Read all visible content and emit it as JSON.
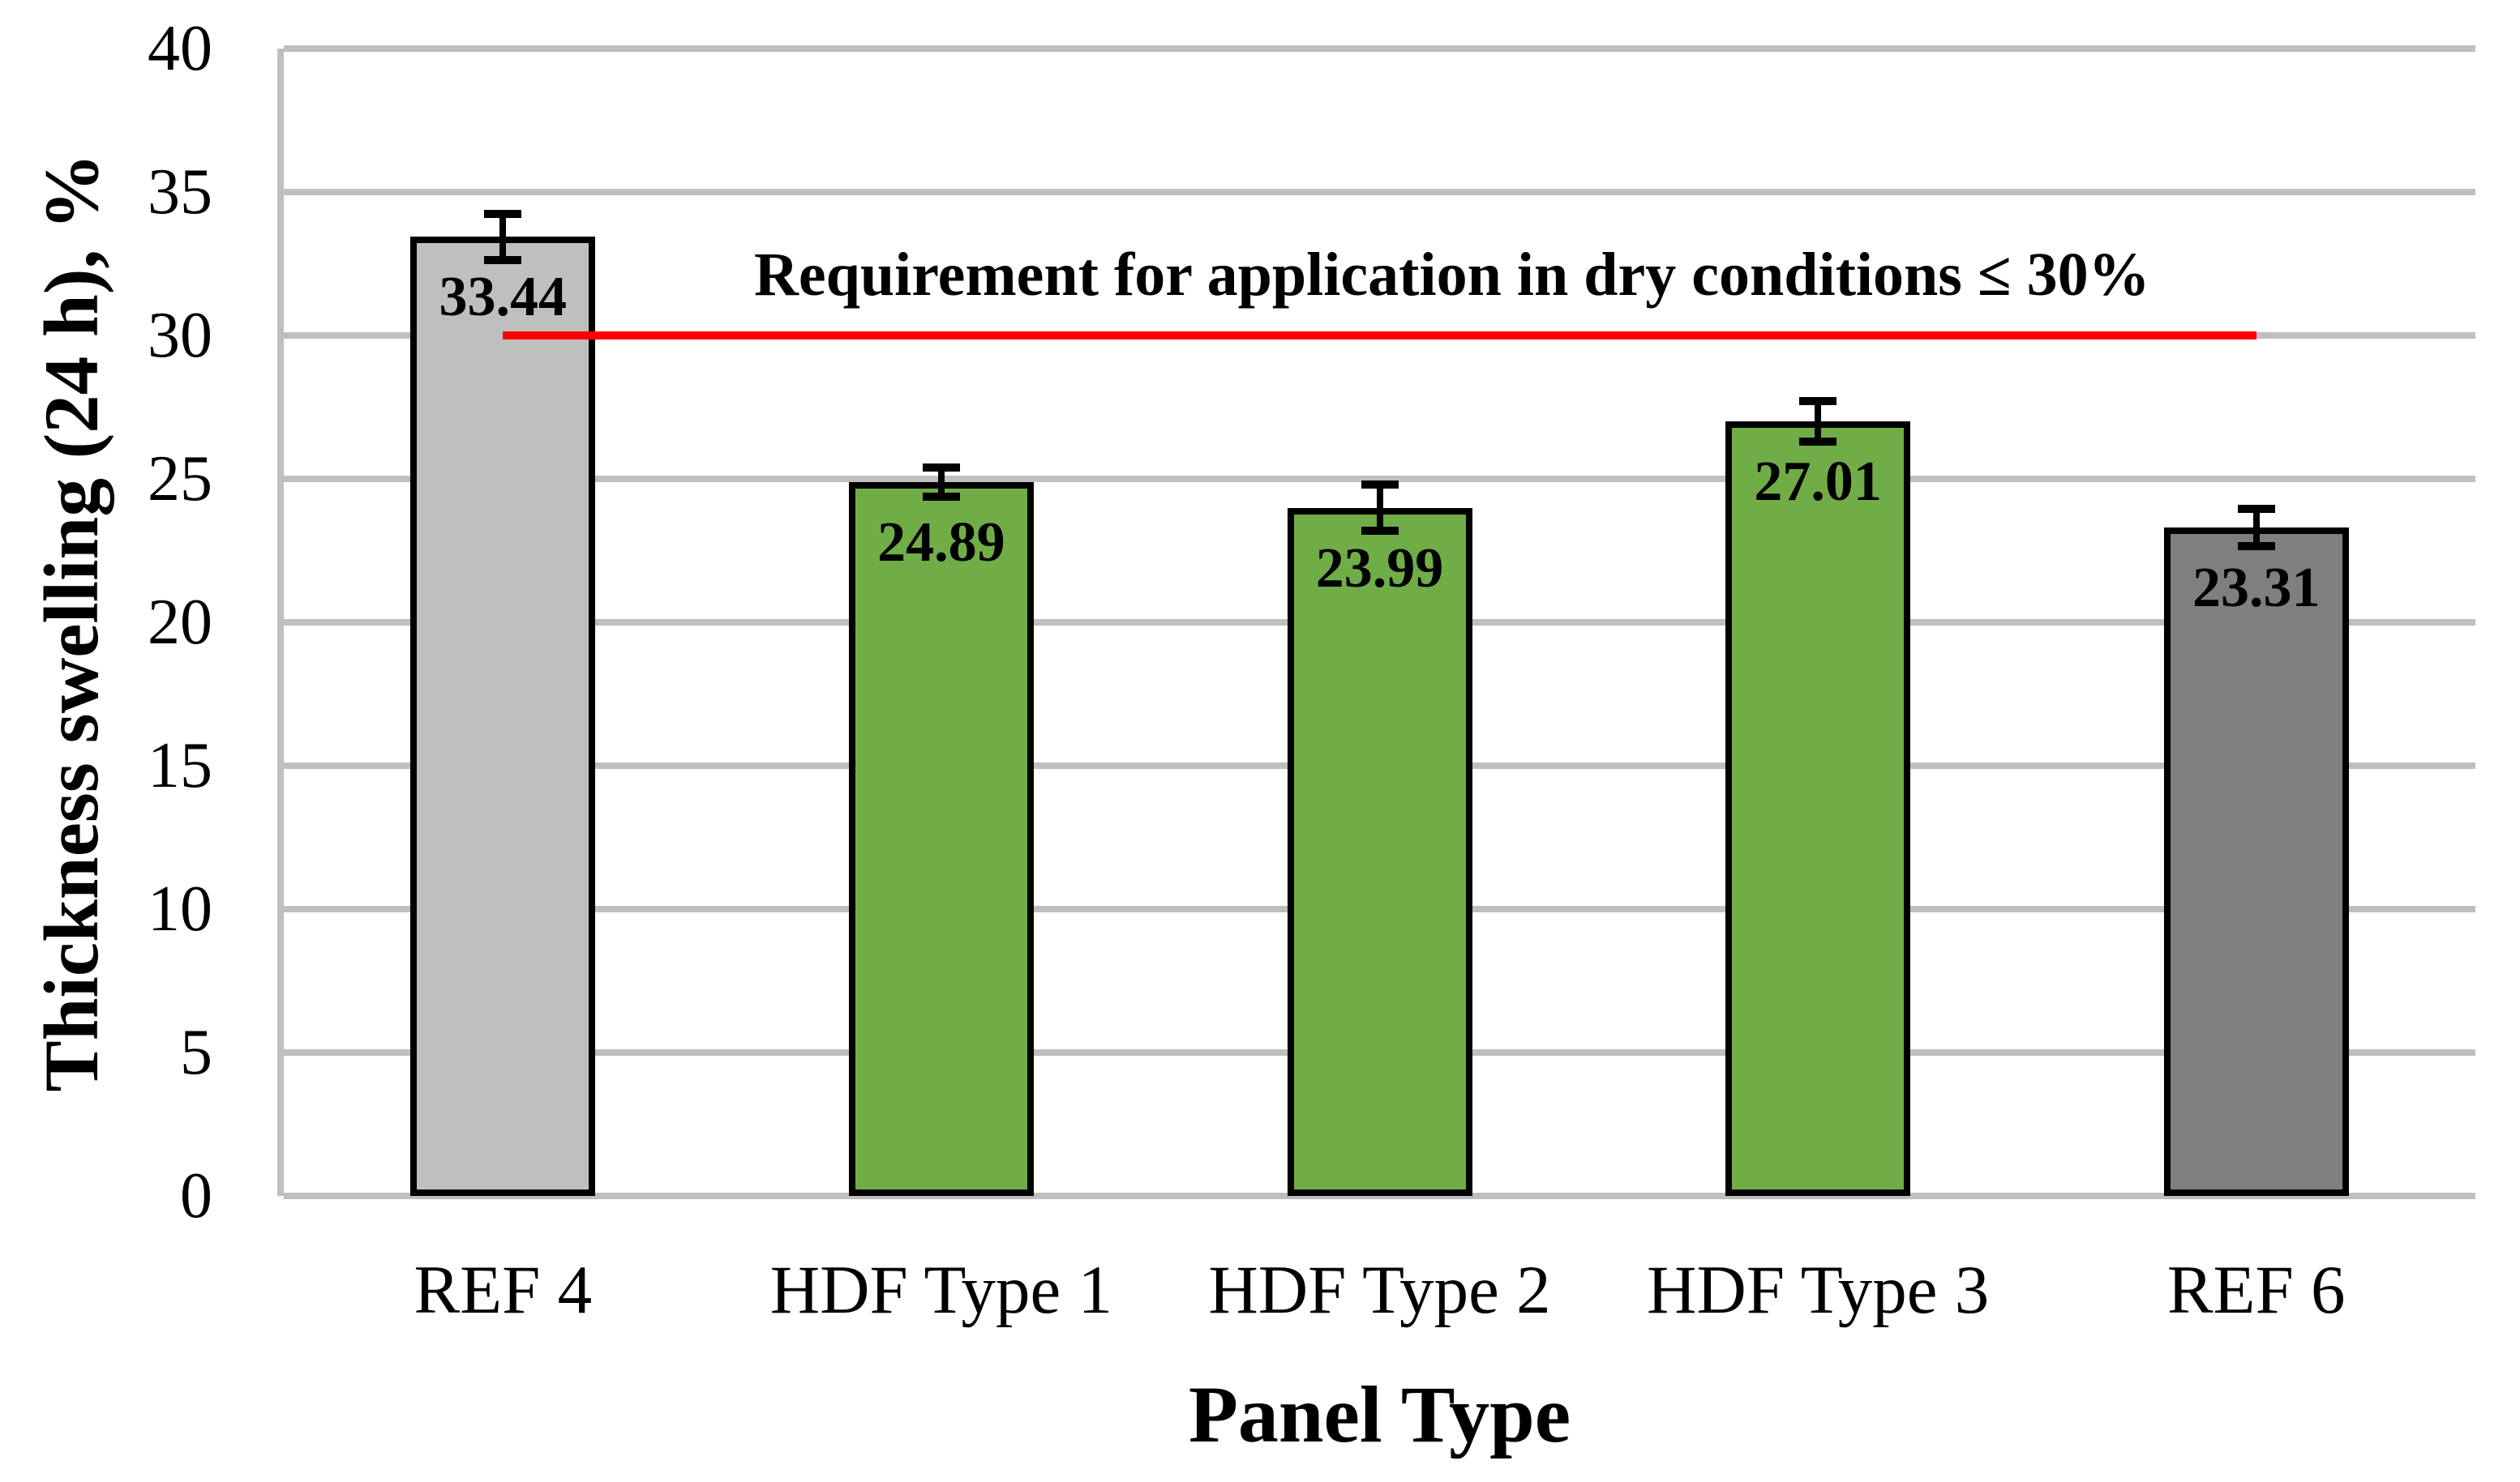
{
  "chart_data": {
    "type": "bar",
    "title": "",
    "xlabel": "Panel Type",
    "ylabel": "Thickness swelling (24 h), %",
    "categories": [
      "REF 4",
      "HDF Type 1",
      "HDF Type 2",
      "HDF Type 3",
      "REF 6"
    ],
    "values": [
      33.44,
      24.89,
      23.99,
      27.01,
      23.31
    ],
    "value_labels": [
      "33.44",
      "24.89",
      "23.99",
      "27.01",
      "23.31"
    ],
    "errors": [
      0.8,
      0.5,
      0.8,
      0.7,
      0.65
    ],
    "bar_colors": [
      "#BFBFBF",
      "#70AD47",
      "#70AD47",
      "#70AD47",
      "#7F7F7F"
    ],
    "bar_border_color": "#000000",
    "error_bar_color": "#000000",
    "ylim": [
      0,
      40
    ],
    "yticks": [
      0,
      5,
      10,
      15,
      20,
      25,
      30,
      35,
      40
    ],
    "grid": true,
    "gridline_color": "#BFBFBF",
    "legend": "none",
    "annotation": {
      "text": "Requirement for application in dry conditions ≤ 30%",
      "line_y": 30,
      "line_color": "#FF0000"
    }
  }
}
